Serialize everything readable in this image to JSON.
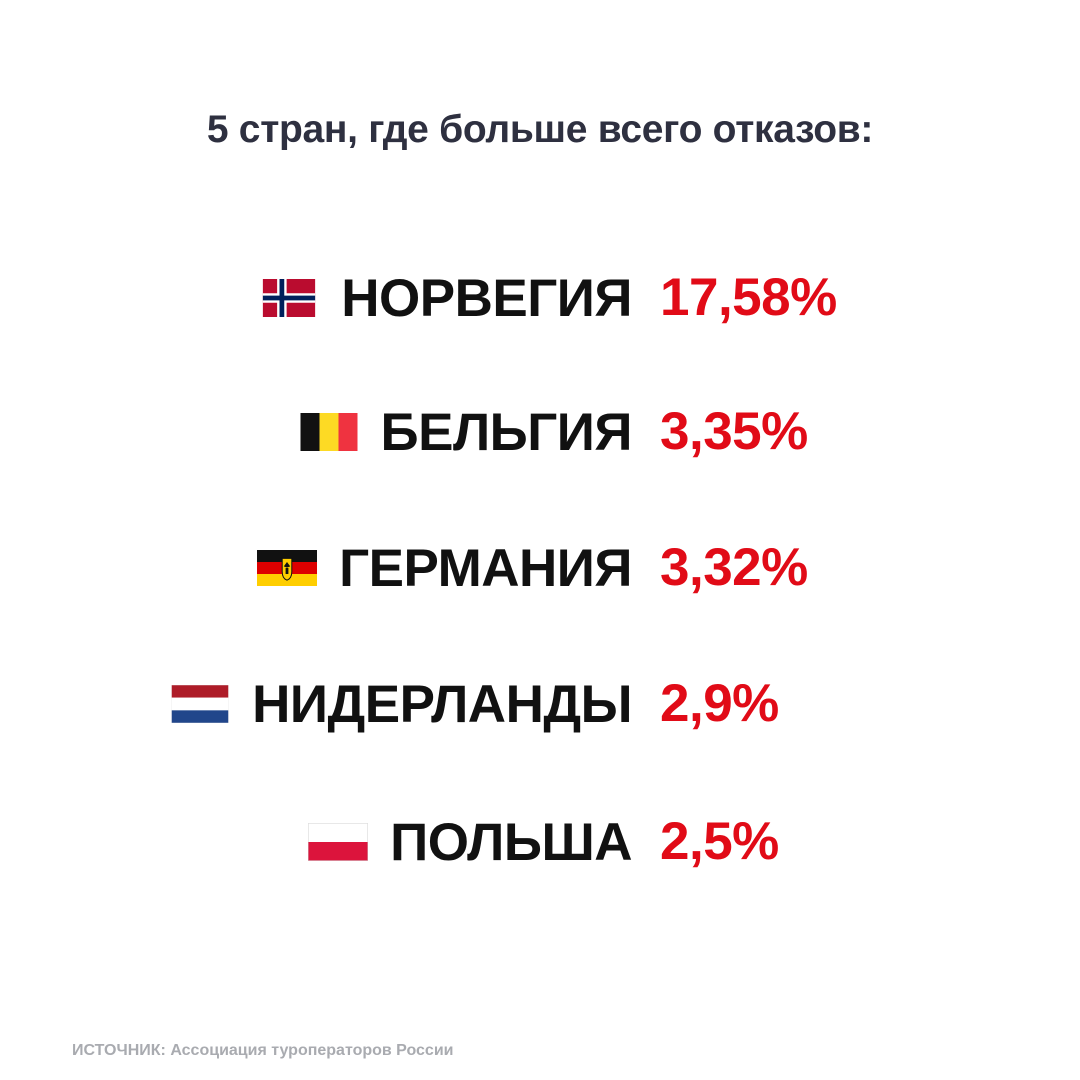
{
  "chart_data": {
    "type": "table",
    "title": "5 стран, где больше всего отказов:",
    "categories": [
      "НОРВЕГИЯ",
      "БЕЛЬГИЯ",
      "ГЕРМАНИЯ",
      "НИДЕРЛАНДЫ",
      "ПОЛЬША"
    ],
    "values": [
      17.58,
      3.35,
      3.32,
      2.9,
      2.5
    ],
    "value_labels": [
      "17,58%",
      "3,35%",
      "3,32%",
      "2,9%",
      "2,5%"
    ],
    "unit": "%"
  },
  "rows": [
    {
      "flag": "norway-flag-icon",
      "country": "НОРВЕГИЯ",
      "value": "17,58%"
    },
    {
      "flag": "belgium-flag-icon",
      "country": "БЕЛЬГИЯ",
      "value": "3,35%"
    },
    {
      "flag": "germany-flag-icon",
      "country": "ГЕРМАНИЯ",
      "value": "3,32%"
    },
    {
      "flag": "netherlands-flag-icon",
      "country": "НИДЕРЛАНДЫ",
      "value": "2,9%"
    },
    {
      "flag": "poland-flag-icon",
      "country": "ПОЛЬША",
      "value": "2,5%"
    }
  ],
  "source": "ИСТОЧНИК: Ассоциация туроператоров России",
  "colors": {
    "title": "#2e3040",
    "country": "#111111",
    "value": "#e10b17",
    "source": "#a9abb0",
    "background": "#ffffff"
  }
}
